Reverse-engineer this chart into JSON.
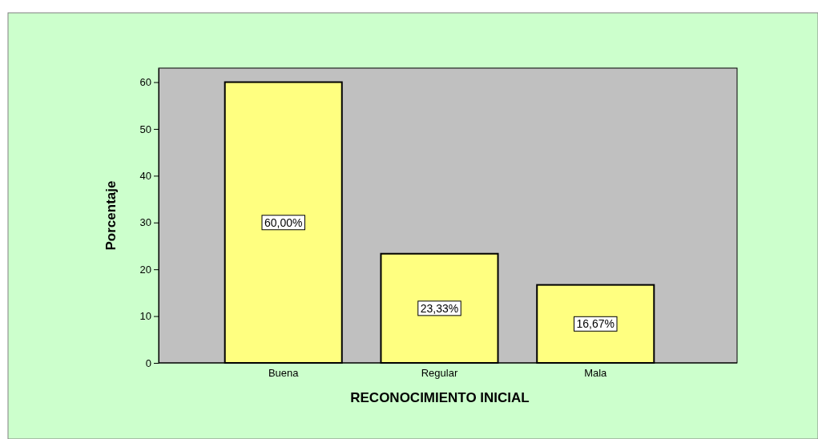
{
  "chart_data": {
    "type": "bar",
    "xlabel": "RECONOCIMIENTO INICIAL",
    "ylabel": "Porcentaje",
    "categories": [
      "Buena",
      "Regular",
      "Mala"
    ],
    "values": [
      60,
      23.33,
      16.67
    ],
    "value_labels": [
      "60,00%",
      "23,33%",
      "16,67%"
    ],
    "color": "#ffff80",
    "ylim": [
      0,
      63
    ],
    "yticks": [
      0,
      10,
      20,
      30,
      40,
      50,
      60
    ],
    "grid": false
  }
}
